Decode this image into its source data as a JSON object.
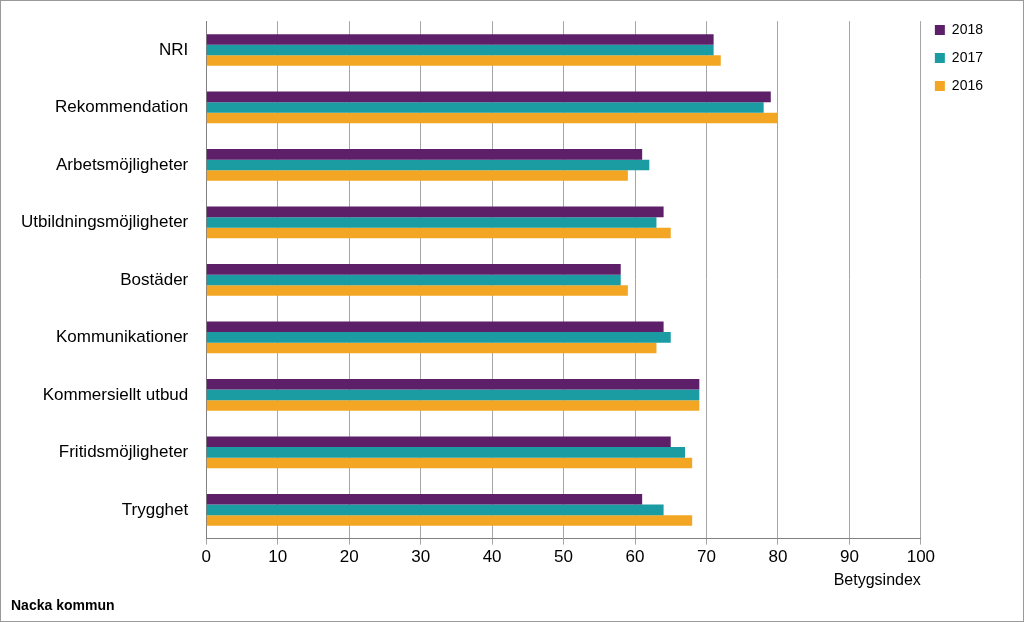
{
  "chart_data": {
    "type": "bar",
    "orientation": "horizontal",
    "subtitle": "Nacka kommun",
    "x_label": "Betygsindex",
    "categories": [
      "NRI",
      "Rekommendation",
      "Arbetsmöjligheter",
      "Utbildningsmöjligheter",
      "Bostäder",
      "Kommunikationer",
      "Kommersiellt utbud",
      "Fritidsmöjligheter",
      "Trygghet"
    ],
    "series": [
      {
        "name": "2018",
        "color": "#5c1f68",
        "values": [
          71,
          79,
          61,
          64,
          58,
          64,
          69,
          65,
          61
        ]
      },
      {
        "name": "2017",
        "color": "#1a9ca2",
        "values": [
          71,
          78,
          62,
          63,
          58,
          65,
          69,
          67,
          64
        ]
      },
      {
        "name": "2016",
        "color": "#f2a623",
        "values": [
          72,
          80,
          59,
          65,
          59,
          63,
          69,
          68,
          68
        ]
      }
    ],
    "xlim": [
      0,
      100
    ],
    "xticks": [
      0,
      10,
      20,
      30,
      40,
      50,
      60,
      70,
      80,
      90,
      100
    ],
    "grid": true,
    "legend": "right"
  }
}
